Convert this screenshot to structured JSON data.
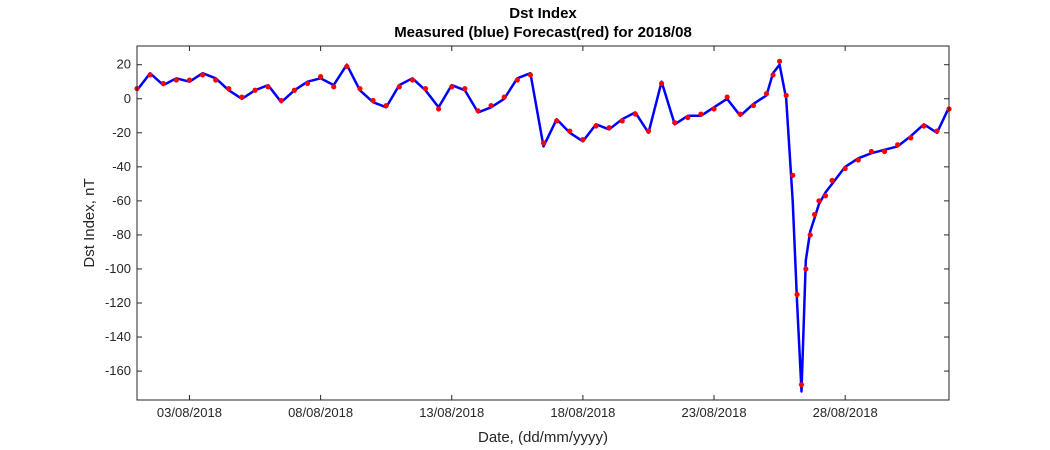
{
  "chart_data": {
    "type": "line",
    "title": "Dst Index",
    "subtitle": "Measured (blue) Forecast(red) for 2018/08",
    "xlabel": "Date, (dd/mm/yyyy)",
    "ylabel": "Dst Index, nT",
    "ylim": [
      -177,
      31
    ],
    "xlim": [
      "2018-08-01 00:00",
      "2018-08-31 23:00"
    ],
    "yticks": [
      20,
      0,
      -20,
      -40,
      -60,
      -80,
      -100,
      -120,
      -140,
      -160
    ],
    "xticks": [
      {
        "date": "2018-08-03",
        "label": "03/08/2018"
      },
      {
        "date": "2018-08-08",
        "label": "08/08/2018"
      },
      {
        "date": "2018-08-13",
        "label": "13/08/2018"
      },
      {
        "date": "2018-08-18",
        "label": "18/08/2018"
      },
      {
        "date": "2018-08-23",
        "label": "23/08/2018"
      },
      {
        "date": "2018-08-28",
        "label": "28/08/2018"
      }
    ],
    "grid": false,
    "series_colors": {
      "measured": "#0000ff",
      "forecast": "#ff0000"
    },
    "series": [
      {
        "key": "measured",
        "style": "line",
        "x": [
          "2018-08-01 00:00",
          "2018-08-01 12:00",
          "2018-08-02 00:00",
          "2018-08-02 12:00",
          "2018-08-03 00:00",
          "2018-08-03 12:00",
          "2018-08-04 00:00",
          "2018-08-04 12:00",
          "2018-08-05 00:00",
          "2018-08-05 12:00",
          "2018-08-06 00:00",
          "2018-08-06 12:00",
          "2018-08-07 00:00",
          "2018-08-07 12:00",
          "2018-08-08 00:00",
          "2018-08-08 12:00",
          "2018-08-09 00:00",
          "2018-08-09 12:00",
          "2018-08-10 00:00",
          "2018-08-10 12:00",
          "2018-08-11 00:00",
          "2018-08-11 12:00",
          "2018-08-12 00:00",
          "2018-08-12 12:00",
          "2018-08-13 00:00",
          "2018-08-13 12:00",
          "2018-08-14 00:00",
          "2018-08-14 12:00",
          "2018-08-15 00:00",
          "2018-08-15 12:00",
          "2018-08-16 00:00",
          "2018-08-16 12:00",
          "2018-08-17 00:00",
          "2018-08-17 12:00",
          "2018-08-18 00:00",
          "2018-08-18 12:00",
          "2018-08-19 00:00",
          "2018-08-19 12:00",
          "2018-08-20 00:00",
          "2018-08-20 12:00",
          "2018-08-21 00:00",
          "2018-08-21 12:00",
          "2018-08-22 00:00",
          "2018-08-22 12:00",
          "2018-08-23 00:00",
          "2018-08-23 12:00",
          "2018-08-24 00:00",
          "2018-08-24 12:00",
          "2018-08-25 00:00",
          "2018-08-25 06:00",
          "2018-08-25 12:00",
          "2018-08-25 18:00",
          "2018-08-26 00:00",
          "2018-08-26 04:00",
          "2018-08-26 08:00",
          "2018-08-26 12:00",
          "2018-08-26 16:00",
          "2018-08-26 20:00",
          "2018-08-27 00:00",
          "2018-08-27 06:00",
          "2018-08-27 12:00",
          "2018-08-28 00:00",
          "2018-08-28 12:00",
          "2018-08-29 00:00",
          "2018-08-29 12:00",
          "2018-08-30 00:00",
          "2018-08-30 12:00",
          "2018-08-31 00:00",
          "2018-08-31 12:00",
          "2018-08-31 23:00"
        ],
        "y": [
          5,
          15,
          8,
          12,
          10,
          15,
          12,
          5,
          0,
          5,
          8,
          -2,
          5,
          10,
          12,
          8,
          20,
          5,
          -2,
          -5,
          8,
          12,
          5,
          -5,
          8,
          5,
          -8,
          -5,
          0,
          12,
          15,
          -28,
          -12,
          -20,
          -25,
          -15,
          -18,
          -12,
          -8,
          -20,
          10,
          -15,
          -10,
          -10,
          -5,
          0,
          -10,
          -3,
          2,
          15,
          20,
          0,
          -60,
          -120,
          -172,
          -95,
          -78,
          -70,
          -62,
          -55,
          -50,
          -40,
          -35,
          -32,
          -30,
          -28,
          -22,
          -15,
          -20,
          -5
        ],
        "name": ""
      },
      {
        "key": "forecast",
        "style": "markers",
        "x": [
          "2018-08-01 00:00",
          "2018-08-01 12:00",
          "2018-08-02 00:00",
          "2018-08-02 12:00",
          "2018-08-03 00:00",
          "2018-08-03 12:00",
          "2018-08-04 00:00",
          "2018-08-04 12:00",
          "2018-08-05 00:00",
          "2018-08-05 12:00",
          "2018-08-06 00:00",
          "2018-08-06 12:00",
          "2018-08-07 00:00",
          "2018-08-07 12:00",
          "2018-08-08 00:00",
          "2018-08-08 12:00",
          "2018-08-09 00:00",
          "2018-08-09 12:00",
          "2018-08-10 00:00",
          "2018-08-10 12:00",
          "2018-08-11 00:00",
          "2018-08-11 12:00",
          "2018-08-12 00:00",
          "2018-08-12 12:00",
          "2018-08-13 00:00",
          "2018-08-13 12:00",
          "2018-08-14 00:00",
          "2018-08-14 12:00",
          "2018-08-15 00:00",
          "2018-08-15 12:00",
          "2018-08-16 00:00",
          "2018-08-16 12:00",
          "2018-08-17 00:00",
          "2018-08-17 12:00",
          "2018-08-18 00:00",
          "2018-08-18 12:00",
          "2018-08-19 00:00",
          "2018-08-19 12:00",
          "2018-08-20 00:00",
          "2018-08-20 12:00",
          "2018-08-21 00:00",
          "2018-08-21 12:00",
          "2018-08-22 00:00",
          "2018-08-22 12:00",
          "2018-08-23 00:00",
          "2018-08-23 12:00",
          "2018-08-24 00:00",
          "2018-08-24 12:00",
          "2018-08-25 00:00",
          "2018-08-25 06:00",
          "2018-08-25 12:00",
          "2018-08-25 18:00",
          "2018-08-26 00:00",
          "2018-08-26 04:00",
          "2018-08-26 08:00",
          "2018-08-26 12:00",
          "2018-08-26 16:00",
          "2018-08-26 20:00",
          "2018-08-27 00:00",
          "2018-08-27 06:00",
          "2018-08-27 12:00",
          "2018-08-28 00:00",
          "2018-08-28 12:00",
          "2018-08-29 00:00",
          "2018-08-29 12:00",
          "2018-08-30 00:00",
          "2018-08-30 12:00",
          "2018-08-31 00:00",
          "2018-08-31 12:00",
          "2018-08-31 23:00"
        ],
        "y": [
          6,
          14,
          9,
          11,
          11,
          14,
          11,
          6,
          1,
          5,
          7,
          -1,
          5,
          9,
          13,
          7,
          19,
          6,
          -1,
          -4,
          7,
          11,
          6,
          -6,
          7,
          6,
          -7,
          -4,
          1,
          11,
          14,
          -26,
          -13,
          -19,
          -24,
          -16,
          -17,
          -13,
          -9,
          -19,
          9,
          -14,
          -11,
          -9,
          -6,
          1,
          -9,
          -4,
          3,
          14,
          22,
          2,
          -45,
          -115,
          -168,
          -100,
          -80,
          -68,
          -60,
          -57,
          -48,
          -41,
          -36,
          -31,
          -31,
          -27,
          -23,
          -16,
          -19,
          -6
        ],
        "name": ""
      }
    ]
  }
}
